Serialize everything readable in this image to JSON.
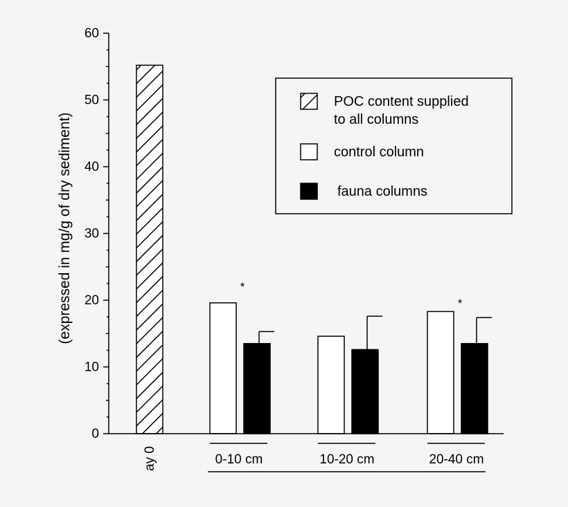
{
  "chart_data": {
    "type": "bar",
    "ylim": [
      0,
      60
    ],
    "yticks": [
      0,
      10,
      20,
      30,
      40,
      50,
      60
    ],
    "ylabel": "(expressed in mg/g of dry sediment)",
    "first_category": "ay 0",
    "first_value": 55.2,
    "groups": [
      "0-10 cm",
      "10-20 cm",
      "20-40 cm"
    ],
    "series": [
      {
        "name": "POC content supplied to all columns",
        "pattern": "hatch"
      },
      {
        "name": "control column",
        "values": [
          19.6,
          14.6,
          18.3
        ],
        "color": "#ffffff"
      },
      {
        "name": "fauna columns",
        "values": [
          13.5,
          12.6,
          13.5
        ],
        "errors": [
          1.8,
          5.0,
          3.9
        ],
        "color": "#000000"
      }
    ],
    "annotations": [
      {
        "group": "0-10 cm",
        "text": "*"
      },
      {
        "group": "20-40 cm",
        "text": "*"
      }
    ],
    "legend": {
      "placement": "top-right",
      "items": [
        {
          "lines": [
            "POC content supplied",
            "to all columns"
          ],
          "pattern": "hatch"
        },
        {
          "lines": [
            "control column"
          ],
          "pattern": "white"
        },
        {
          "lines": [
            "fauna columns"
          ],
          "pattern": "black"
        }
      ]
    }
  }
}
